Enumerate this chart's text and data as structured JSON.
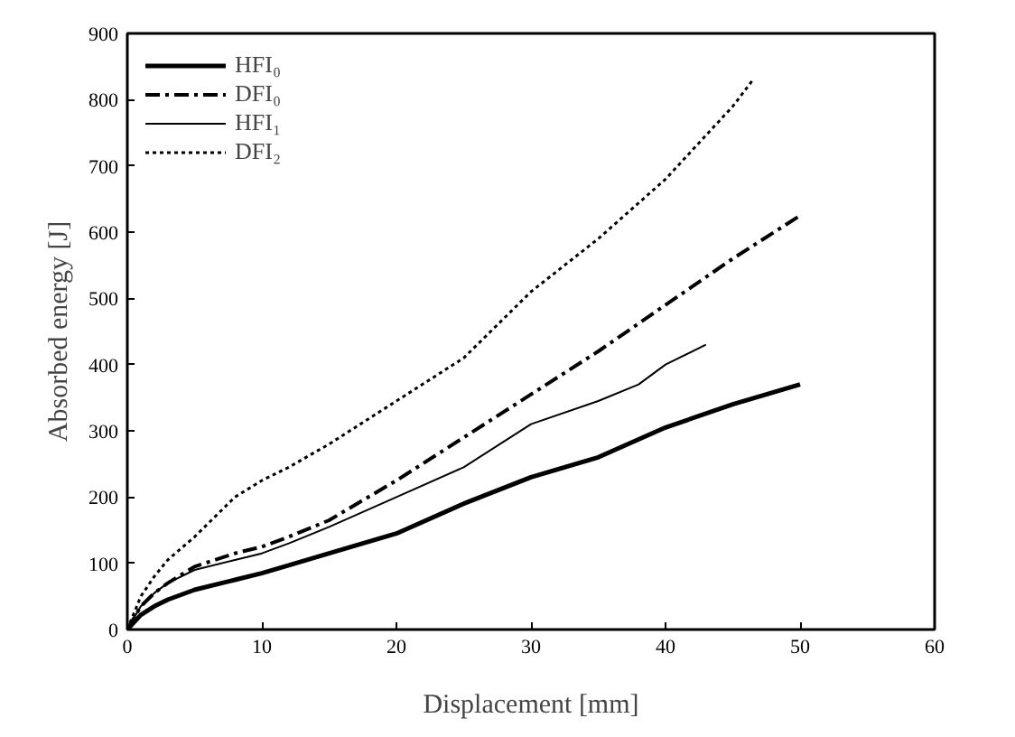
{
  "chart_data": {
    "type": "line",
    "xlabel": "Displacement [mm]",
    "ylabel": "Absorbed energy [J]",
    "xlim": [
      0,
      60
    ],
    "ylim": [
      0,
      900
    ],
    "xticks": [
      0,
      10,
      20,
      30,
      40,
      50,
      60
    ],
    "yticks": [
      0,
      100,
      200,
      300,
      400,
      500,
      600,
      700,
      800,
      900
    ],
    "grid": false,
    "legend": "top left",
    "marker": "none",
    "series": [
      {
        "name": "HFI₀",
        "color": "#000000",
        "line_style": "solid",
        "x": [
          0,
          1,
          2,
          3,
          5,
          8,
          10,
          12,
          15,
          20,
          25,
          30,
          35,
          40,
          45,
          50
        ],
        "values": [
          0,
          22,
          35,
          45,
          60,
          75,
          85,
          97,
          115,
          145,
          190,
          230,
          260,
          305,
          340,
          370
        ]
      },
      {
        "name": "DFI₀",
        "color": "#000000",
        "line_style": "dashed",
        "x": [
          0,
          1,
          2,
          3,
          5,
          8,
          10,
          12,
          15,
          20,
          25,
          30,
          35,
          40,
          45,
          50
        ],
        "values": [
          0,
          35,
          55,
          70,
          95,
          115,
          125,
          140,
          165,
          225,
          290,
          355,
          420,
          490,
          560,
          625
        ]
      },
      {
        "name": "HFI₁",
        "color": "#000000",
        "line_style": "solid",
        "x": [
          0,
          1,
          2,
          3,
          5,
          8,
          10,
          12,
          15,
          20,
          25,
          30,
          35,
          38,
          40,
          43
        ],
        "values": [
          0,
          35,
          55,
          70,
          90,
          105,
          115,
          130,
          155,
          200,
          245,
          310,
          345,
          370,
          400,
          430
        ]
      },
      {
        "name": "DFI₂",
        "color": "#000000",
        "line_style": "dotted",
        "x": [
          0,
          1,
          2,
          3,
          5,
          8,
          10,
          12,
          15,
          20,
          25,
          30,
          35,
          40,
          45,
          46.5
        ],
        "values": [
          0,
          50,
          80,
          105,
          140,
          200,
          225,
          245,
          280,
          345,
          410,
          510,
          590,
          680,
          790,
          830
        ]
      }
    ]
  }
}
